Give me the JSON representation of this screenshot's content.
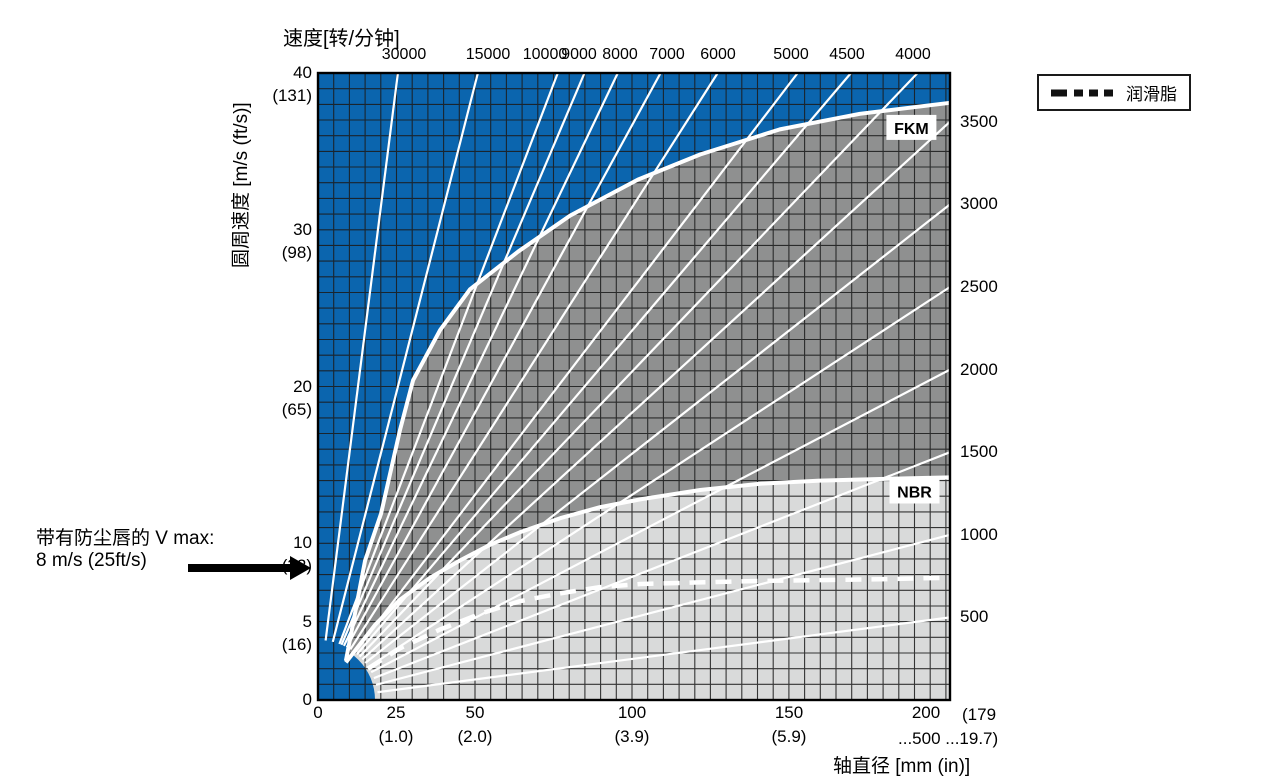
{
  "legend": {
    "label": "润滑脂"
  },
  "annotation": {
    "line1": "带有防尘唇的  V max:",
    "line2": "8 m/s (25ft/s)",
    "arrow": "right-arrow"
  },
  "chart_data": {
    "type": "area+line",
    "title_top": "速度[转/分钟]",
    "ylabel": "圆周速度  [m/s (ft/s)]",
    "xlabel": "轴直径  [mm (in)]",
    "x_max_mm": 201.3,
    "y_max_ms": 40,
    "grid": {
      "dx_mm": 5,
      "dv_ms": 1,
      "on": true
    },
    "y_ticks": [
      {
        "v": 40,
        "label": "40",
        "sub": "(131)"
      },
      {
        "v": 30,
        "label": "30",
        "sub": "(98)"
      },
      {
        "v": 20,
        "label": "20",
        "sub": "(65)"
      },
      {
        "v": 10,
        "label": "10",
        "sub": "(32)"
      },
      {
        "v": 5,
        "label": "5",
        "sub": "(16)"
      },
      {
        "v": 0,
        "label": "0",
        "sub": ""
      }
    ],
    "x_ticks": [
      {
        "d": 0,
        "label": "0",
        "sub": ""
      },
      {
        "d": 25,
        "label": "25",
        "sub": "(1.0)"
      },
      {
        "d": 50,
        "label": "50",
        "sub": "(2.0)"
      },
      {
        "d": 100,
        "label": "100",
        "sub": "(3.9)"
      },
      {
        "d": 150,
        "label": "150",
        "sub": "(5.9)"
      },
      {
        "d": 200,
        "label": "200",
        "sub": ""
      }
    ],
    "x_extra_note": {
      "line1": "(179",
      "line2": "...500 ...19.7)"
    },
    "rpm_lines_top": [
      30000,
      15000,
      10000,
      9000,
      8000,
      7000,
      6000,
      5000,
      4500,
      4000
    ],
    "rpm_lines_right": [
      3500,
      3000,
      2500,
      2000,
      1500,
      1000,
      500
    ],
    "regions": {
      "fkm": [
        [
          8.9,
          2.5
        ],
        [
          15,
          8.9
        ],
        [
          20.1,
          11.9
        ],
        [
          26.1,
          17.2
        ],
        [
          30.3,
          20.4
        ],
        [
          38.9,
          23.6
        ],
        [
          48.4,
          26.2
        ],
        [
          63.7,
          28.6
        ],
        [
          80.3,
          30.9
        ],
        [
          101.9,
          33.2
        ],
        [
          121.7,
          34.8
        ],
        [
          147.1,
          36.4
        ],
        [
          172.6,
          37.4
        ],
        [
          201.3,
          38.1
        ]
      ],
      "nbr": [
        [
          8.9,
          2.4
        ],
        [
          18.2,
          4.8
        ],
        [
          26.1,
          6.4
        ],
        [
          35.7,
          7.8
        ],
        [
          45.2,
          8.9
        ],
        [
          54.8,
          9.9
        ],
        [
          64.3,
          10.7
        ],
        [
          77.1,
          11.6
        ],
        [
          89.8,
          12.3
        ],
        [
          102.6,
          12.8
        ],
        [
          121.7,
          13.4
        ],
        [
          140.8,
          13.8
        ],
        [
          159.9,
          14.0
        ],
        [
          179.0,
          14.1
        ],
        [
          201.3,
          14.2
        ]
      ],
      "grease": [
        [
          15.9,
          2.0
        ],
        [
          26.1,
          3.3
        ],
        [
          38.9,
          4.5
        ],
        [
          51.6,
          5.5
        ],
        [
          64.3,
          6.3
        ],
        [
          77.1,
          6.8
        ],
        [
          89.8,
          7.2
        ],
        [
          102.6,
          7.4
        ],
        [
          121.7,
          7.5
        ],
        [
          140.8,
          7.6
        ],
        [
          159.9,
          7.65
        ],
        [
          179.0,
          7.7
        ],
        [
          201.3,
          7.8
        ]
      ]
    },
    "labels": {
      "fkm": {
        "text": "FKM",
        "d": 189,
        "v": 36.5
      },
      "nbr": {
        "text": "NBR",
        "d": 190,
        "v": 13.3
      }
    },
    "colors": {
      "blue": "#0b65ae",
      "fkm_region": "#8f9090",
      "nbr_region": "#d9dada",
      "grid": "#1c1c1c",
      "line": "#ffffff",
      "border": "#000000"
    }
  }
}
